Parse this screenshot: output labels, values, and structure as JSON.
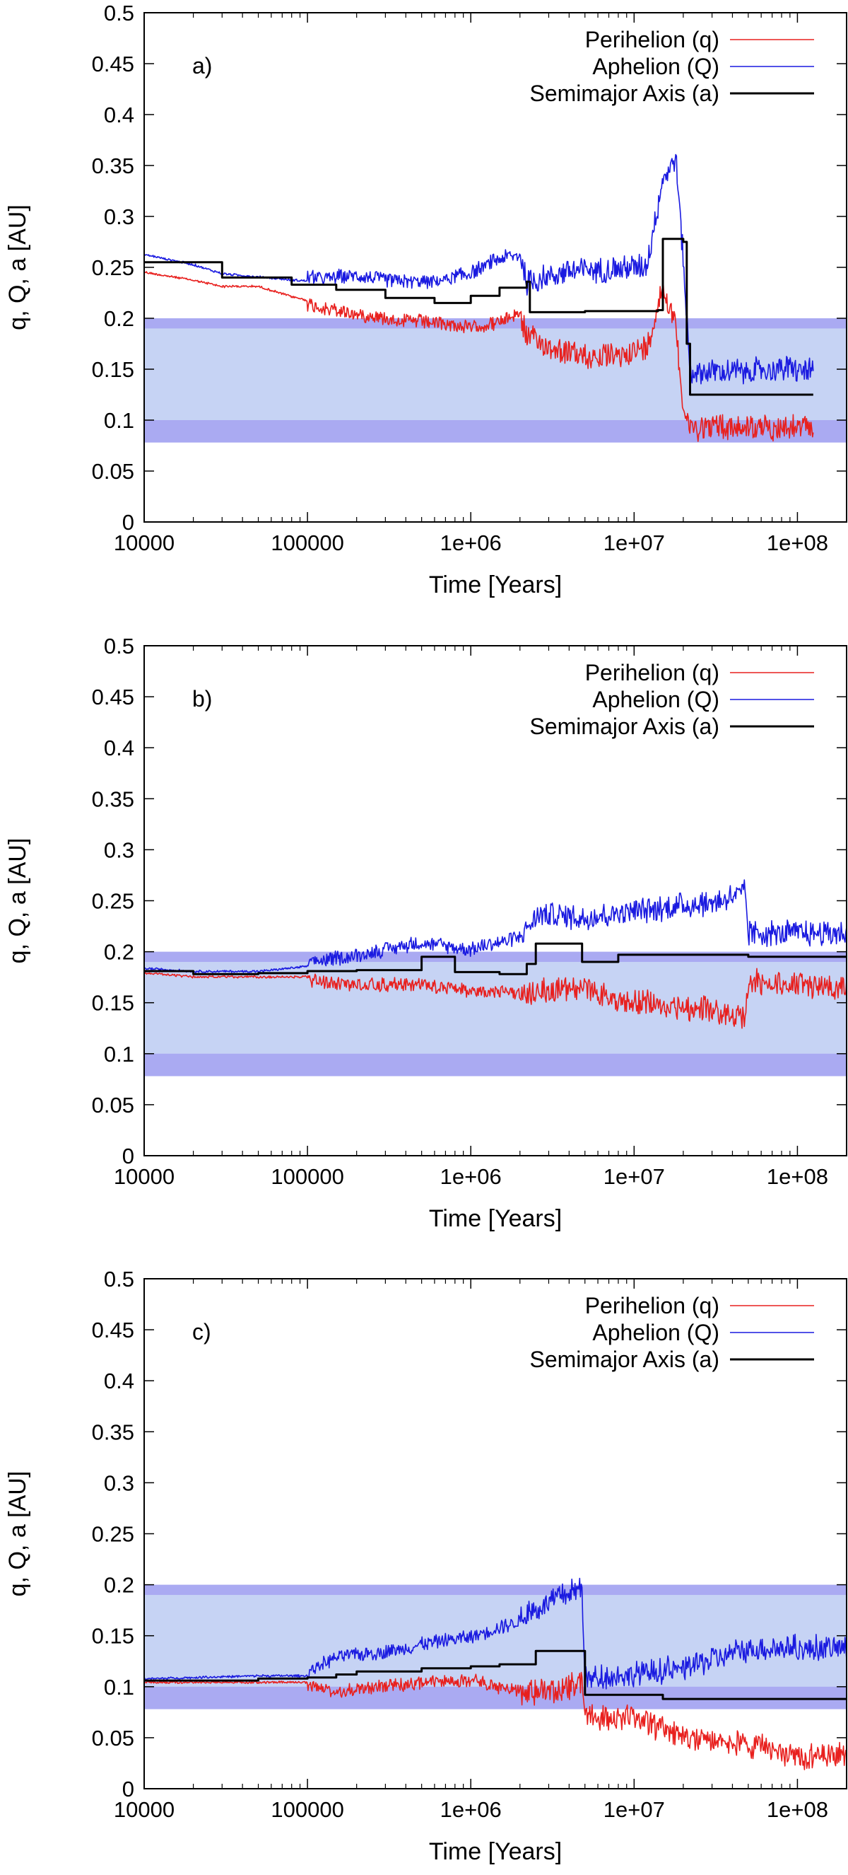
{
  "colors": {
    "perihelion": "#e8201e",
    "aphelion": "#1a1ae0",
    "semimajor": "#000000",
    "band_outer": "#aaaaf2",
    "band_inner": "#c6d3f4"
  },
  "chart_data": [
    {
      "type": "line",
      "panel_label": "a)",
      "xlabel": "Time [Years]",
      "ylabel": "q, Q, a [AU]",
      "xscale": "log",
      "xlim": [
        10000,
        200000000
      ],
      "ylim": [
        0,
        0.5
      ],
      "xticks": [
        "10000",
        "100000",
        "1e+06",
        "1e+07",
        "1e+08"
      ],
      "yticks": [
        "0",
        "0.05",
        "0.1",
        "0.15",
        "0.2",
        "0.25",
        "0.3",
        "0.35",
        "0.4",
        "0.45",
        "0.5"
      ],
      "grid": false,
      "legend": "top-right",
      "bands": [
        {
          "y": [
            0.078,
            0.2
          ],
          "tone": "outer"
        },
        {
          "y": [
            0.1,
            0.19
          ],
          "tone": "inner"
        }
      ],
      "series": [
        {
          "name": "Perihelion (q)",
          "x": [
            10000,
            20000,
            30000,
            50000,
            80000,
            120000,
            200000,
            350000,
            600000,
            1000000,
            1500000,
            2000000,
            2200000,
            3000000,
            5000000,
            8000000,
            12000000,
            15000000,
            18000000,
            20000000,
            22000000,
            30000000,
            50000000,
            80000000,
            125000000
          ],
          "y": [
            0.246,
            0.238,
            0.232,
            0.232,
            0.222,
            0.215,
            0.208,
            0.203,
            0.2,
            0.195,
            0.2,
            0.21,
            0.19,
            0.18,
            0.17,
            0.17,
            0.18,
            0.24,
            0.2,
            0.12,
            0.1,
            0.102,
            0.1,
            0.1,
            0.1
          ]
        },
        {
          "name": "Aphelion (Q)",
          "x": [
            10000,
            20000,
            30000,
            50000,
            80000,
            120000,
            200000,
            350000,
            600000,
            1000000,
            1500000,
            2000000,
            2200000,
            3000000,
            5000000,
            8000000,
            12000000,
            15000000,
            18000000,
            20000000,
            22000000,
            30000000,
            50000000,
            80000000,
            125000000
          ],
          "y": [
            0.262,
            0.252,
            0.243,
            0.24,
            0.237,
            0.235,
            0.238,
            0.232,
            0.232,
            0.24,
            0.255,
            0.258,
            0.225,
            0.235,
            0.24,
            0.24,
            0.245,
            0.33,
            0.35,
            0.25,
            0.14,
            0.14,
            0.14,
            0.143,
            0.14
          ]
        },
        {
          "name": "Semimajor Axis (a)",
          "x": [
            10000,
            30000,
            80000,
            150000,
            300000,
            600000,
            1000000,
            1500000,
            2200000,
            2300000,
            5000000,
            14000000,
            15000000,
            20000000,
            21000000,
            22000000,
            30000000,
            125000000
          ],
          "y": [
            0.255,
            0.24,
            0.233,
            0.228,
            0.22,
            0.215,
            0.222,
            0.23,
            0.236,
            0.206,
            0.207,
            0.208,
            0.278,
            0.275,
            0.175,
            0.125,
            0.125,
            0.125
          ]
        }
      ]
    },
    {
      "type": "line",
      "panel_label": "b)",
      "xlabel": "Time [Years]",
      "ylabel": "q, Q, a [AU]",
      "xscale": "log",
      "xlim": [
        10000,
        200000000
      ],
      "ylim": [
        0,
        0.5
      ],
      "xticks": [
        "10000",
        "100000",
        "1e+06",
        "1e+07",
        "1e+08"
      ],
      "yticks": [
        "0",
        "0.05",
        "0.1",
        "0.15",
        "0.2",
        "0.25",
        "0.3",
        "0.35",
        "0.4",
        "0.45",
        "0.5"
      ],
      "grid": false,
      "legend": "top-right",
      "bands": [
        {
          "y": [
            0.078,
            0.2
          ],
          "tone": "outer"
        },
        {
          "y": [
            0.1,
            0.19
          ],
          "tone": "inner"
        }
      ],
      "series": [
        {
          "name": "Perihelion (q)",
          "x": [
            10000,
            20000,
            50000,
            100000,
            200000,
            500000,
            1000000,
            2000000,
            2700000,
            5000000,
            8000000,
            15000000,
            30000000,
            48000000,
            50000000,
            100000000,
            200000000
          ],
          "y": [
            0.18,
            0.176,
            0.176,
            0.176,
            0.172,
            0.172,
            0.165,
            0.165,
            0.17,
            0.17,
            0.16,
            0.155,
            0.15,
            0.14,
            0.178,
            0.175,
            0.175
          ]
        },
        {
          "name": "Aphelion (Q)",
          "x": [
            10000,
            20000,
            50000,
            100000,
            200000,
            500000,
            1000000,
            2000000,
            2700000,
            5000000,
            8000000,
            15000000,
            30000000,
            48000000,
            50000000,
            100000000,
            200000000
          ],
          "y": [
            0.183,
            0.18,
            0.18,
            0.185,
            0.192,
            0.205,
            0.198,
            0.21,
            0.23,
            0.225,
            0.23,
            0.235,
            0.24,
            0.25,
            0.21,
            0.21,
            0.21
          ]
        },
        {
          "name": "Semimajor Axis (a)",
          "x": [
            10000,
            20000,
            50000,
            100000,
            200000,
            500000,
            800000,
            1500000,
            2200000,
            2500000,
            4800000,
            8000000,
            50000000,
            200000000
          ],
          "y": [
            0.181,
            0.178,
            0.179,
            0.181,
            0.182,
            0.195,
            0.18,
            0.178,
            0.188,
            0.208,
            0.19,
            0.197,
            0.195,
            0.195
          ]
        }
      ]
    },
    {
      "type": "line",
      "panel_label": "c)",
      "xlabel": "Time [Years]",
      "ylabel": "q, Q, a [AU]",
      "xscale": "log",
      "xlim": [
        10000,
        200000000
      ],
      "ylim": [
        0,
        0.5
      ],
      "xticks": [
        "10000",
        "100000",
        "1e+06",
        "1e+07",
        "1e+08"
      ],
      "yticks": [
        "0",
        "0.05",
        "0.1",
        "0.15",
        "0.2",
        "0.25",
        "0.3",
        "0.35",
        "0.4",
        "0.45",
        "0.5"
      ],
      "grid": false,
      "legend": "top-right",
      "bands": [
        {
          "y": [
            0.078,
            0.2
          ],
          "tone": "outer"
        },
        {
          "y": [
            0.1,
            0.19
          ],
          "tone": "inner"
        }
      ],
      "series": [
        {
          "name": "Perihelion (q)",
          "x": [
            10000,
            50000,
            100000,
            150000,
            300000,
            600000,
            1000000,
            2000000,
            4800000,
            5000000,
            10000000,
            20000000,
            50000000,
            100000000,
            200000000
          ],
          "y": [
            0.105,
            0.105,
            0.105,
            0.1,
            0.105,
            0.108,
            0.11,
            0.1,
            0.11,
            0.08,
            0.075,
            0.06,
            0.05,
            0.04,
            0.04
          ]
        },
        {
          "name": "Aphelion (Q)",
          "x": [
            10000,
            50000,
            100000,
            150000,
            300000,
            600000,
            1000000,
            2000000,
            4800000,
            5000000,
            10000000,
            20000000,
            50000000,
            100000000,
            200000000
          ],
          "y": [
            0.107,
            0.11,
            0.11,
            0.125,
            0.13,
            0.14,
            0.145,
            0.16,
            0.19,
            0.1,
            0.105,
            0.11,
            0.13,
            0.13,
            0.13
          ]
        },
        {
          "name": "Semimajor Axis (a)",
          "x": [
            10000,
            50000,
            100000,
            150000,
            200000,
            500000,
            1000000,
            1500000,
            2500000,
            4800000,
            5000000,
            10000000,
            15000000,
            200000000
          ],
          "y": [
            0.106,
            0.108,
            0.109,
            0.112,
            0.115,
            0.118,
            0.12,
            0.122,
            0.135,
            0.135,
            0.092,
            0.092,
            0.088,
            0.088
          ]
        }
      ]
    }
  ]
}
